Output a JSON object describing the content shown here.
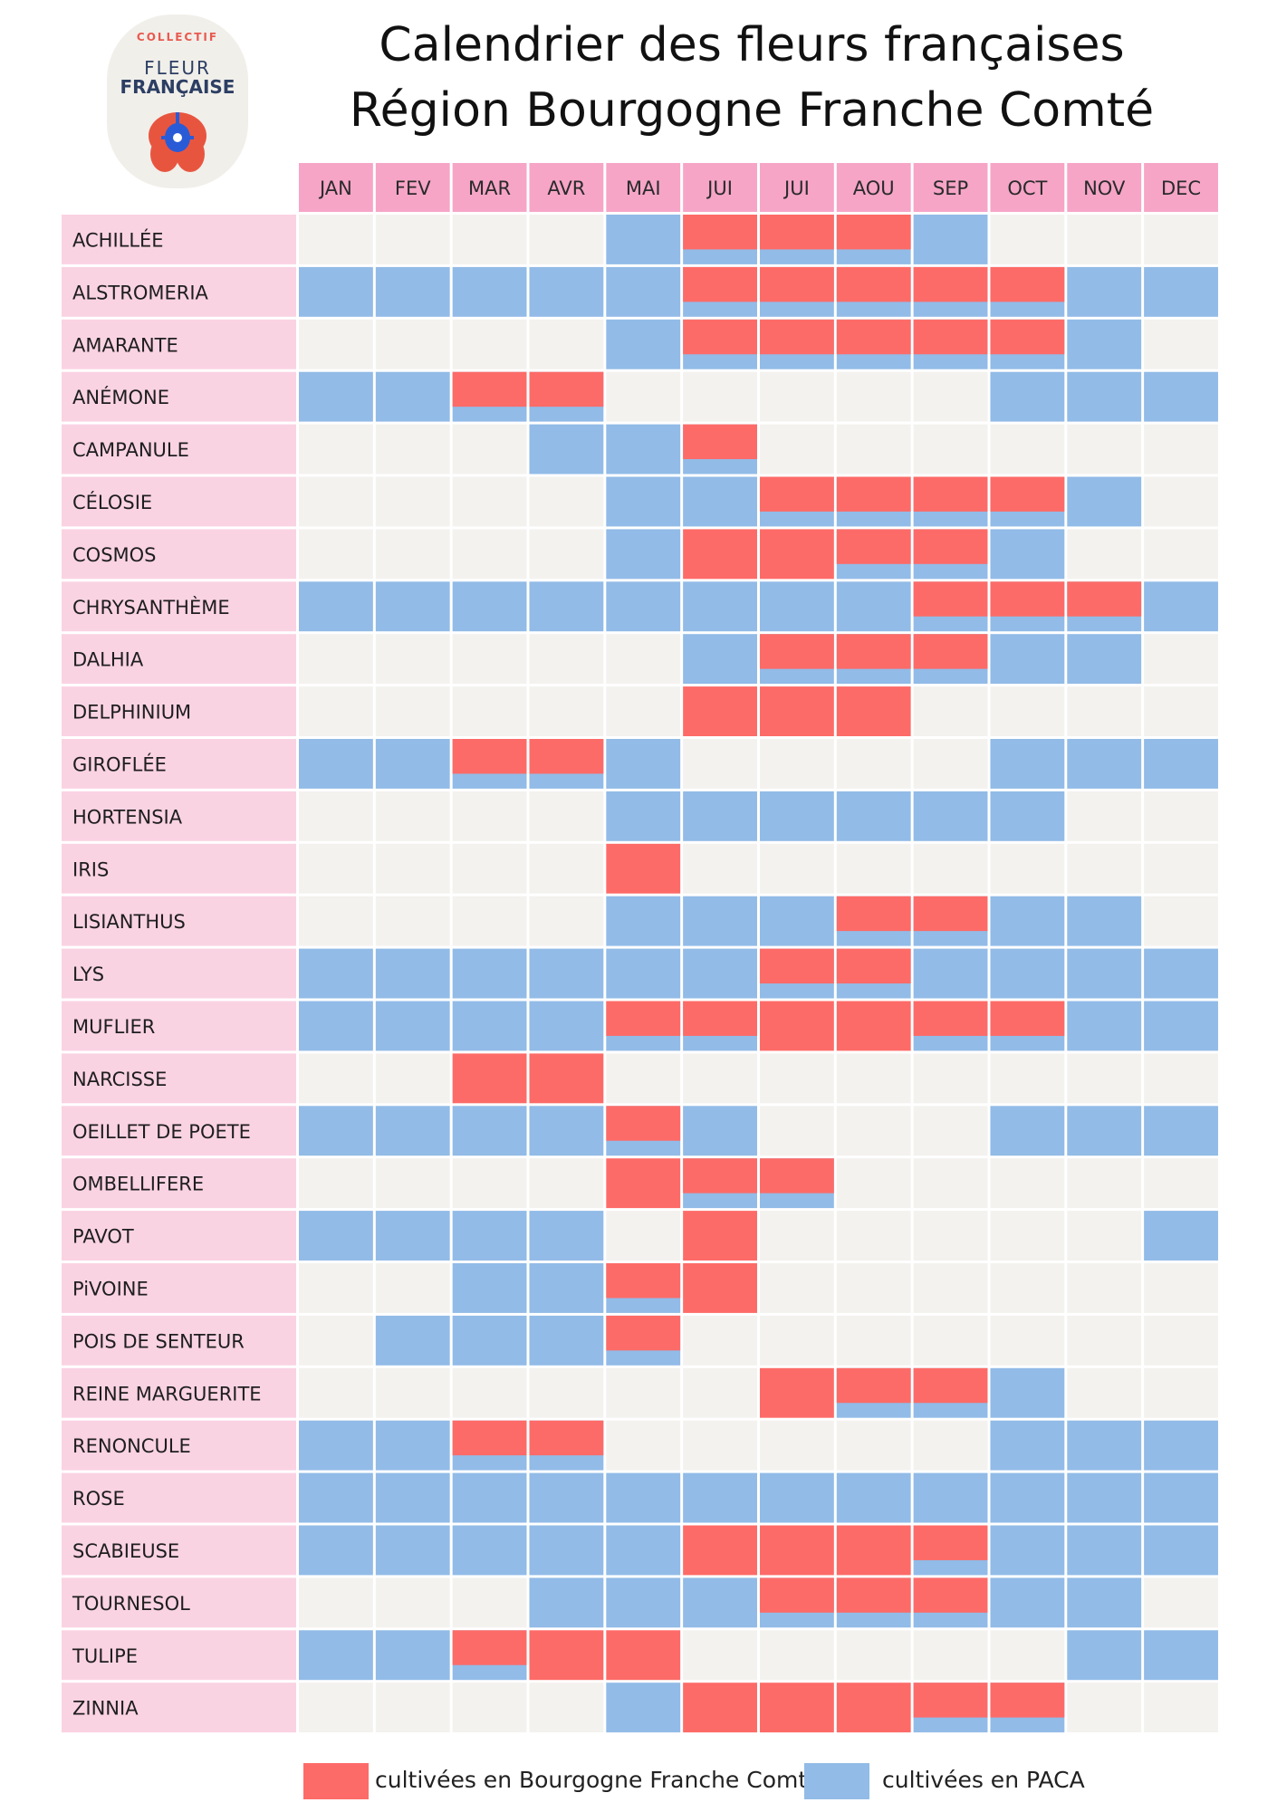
{
  "title_line1": "Calendrier des fleurs françaises",
  "title_line2": "Région Bourgogne Franche Comté",
  "logo": {
    "line1": "COLLECTIF",
    "line2": "FLEUR",
    "line3": "FRANÇAISE"
  },
  "colors": {
    "bfc": "#fd6b68",
    "paca": "#92bbe7",
    "empty": "#f3f2ef",
    "header": "#f6a5c7",
    "label_bg": "#fad3e3"
  },
  "legend": {
    "bfc": "cultivées en Bourgogne Franche Comté",
    "paca": "cultivées en PACA"
  },
  "chart_data": {
    "type": "table",
    "title": "Calendrier des fleurs françaises — Région Bourgogne Franche Comté",
    "months": [
      "JAN",
      "FEV",
      "MAR",
      "AVR",
      "MAI",
      "JUI",
      "JUI",
      "AOU",
      "SEP",
      "OCT",
      "NOV",
      "DEC"
    ],
    "flowers": [
      {
        "name": "ACHILLÉE",
        "cells": [
          "",
          "",
          "",
          "",
          "P",
          "BP",
          "BP",
          "BP",
          "P",
          "",
          "",
          ""
        ]
      },
      {
        "name": "ALSTROMERIA",
        "cells": [
          "P",
          "P",
          "P",
          "P",
          "P",
          "BP",
          "BP",
          "BP",
          "BP",
          "BP",
          "P",
          "P"
        ]
      },
      {
        "name": "AMARANTE",
        "cells": [
          "",
          "",
          "",
          "",
          "P",
          "BP",
          "BP",
          "BP",
          "BP",
          "BP",
          "P",
          ""
        ]
      },
      {
        "name": "ANÉMONE",
        "cells": [
          "P",
          "P",
          "BP",
          "BP",
          "",
          "",
          "",
          "",
          "",
          "P",
          "P",
          "P"
        ]
      },
      {
        "name": "CAMPANULE",
        "cells": [
          "",
          "",
          "",
          "P",
          "P",
          "BP",
          "",
          "",
          "",
          "",
          "",
          ""
        ]
      },
      {
        "name": "CÉLOSIE",
        "cells": [
          "",
          "",
          "",
          "",
          "P",
          "P",
          "BP",
          "BP",
          "BP",
          "BP",
          "P",
          ""
        ]
      },
      {
        "name": "COSMOS",
        "cells": [
          "",
          "",
          "",
          "",
          "P",
          "B",
          "B",
          "BP",
          "BP",
          "P",
          "",
          ""
        ]
      },
      {
        "name": "CHRYSANTHÈME",
        "cells": [
          "P",
          "P",
          "P",
          "P",
          "P",
          "P",
          "P",
          "P",
          "BP",
          "BP",
          "BP",
          "P"
        ]
      },
      {
        "name": "DALHIA",
        "cells": [
          "",
          "",
          "",
          "",
          "",
          "P",
          "BP",
          "BP",
          "BP",
          "P",
          "P",
          ""
        ]
      },
      {
        "name": "DELPHINIUM",
        "cells": [
          "",
          "",
          "",
          "",
          "",
          "B",
          "B",
          "B",
          "",
          "",
          "",
          ""
        ]
      },
      {
        "name": "GIROFLÉE",
        "cells": [
          "P",
          "P",
          "BP",
          "BP",
          "P",
          "",
          "",
          "",
          "",
          "P",
          "P",
          "P"
        ]
      },
      {
        "name": "HORTENSIA",
        "cells": [
          "",
          "",
          "",
          "",
          "P",
          "P",
          "P",
          "P",
          "P",
          "P",
          "",
          ""
        ]
      },
      {
        "name": "IRIS",
        "cells": [
          "",
          "",
          "",
          "",
          "B",
          "",
          "",
          "",
          "",
          "",
          "",
          ""
        ]
      },
      {
        "name": "LISIANTHUS",
        "cells": [
          "",
          "",
          "",
          "",
          "P",
          "P",
          "P",
          "BP",
          "BP",
          "P",
          "P",
          ""
        ]
      },
      {
        "name": "LYS",
        "cells": [
          "P",
          "P",
          "P",
          "P",
          "P",
          "P",
          "BP",
          "BP",
          "P",
          "P",
          "P",
          "P"
        ]
      },
      {
        "name": "MUFLIER",
        "cells": [
          "P",
          "P",
          "P",
          "P",
          "BP",
          "BP",
          "B",
          "B",
          "BP",
          "BP",
          "P",
          "P"
        ]
      },
      {
        "name": "NARCISSE",
        "cells": [
          "",
          "",
          "B",
          "B",
          "",
          "",
          "",
          "",
          "",
          "",
          "",
          ""
        ]
      },
      {
        "name": "OEILLET DE POETE",
        "cells": [
          "P",
          "P",
          "P",
          "P",
          "BP",
          "P",
          "",
          "",
          "",
          "P",
          "P",
          "P"
        ]
      },
      {
        "name": "OMBELLIFERE",
        "cells": [
          "",
          "",
          "",
          "",
          "B",
          "BP",
          "BP",
          "",
          "",
          "",
          "",
          ""
        ]
      },
      {
        "name": "PAVOT",
        "cells": [
          "P",
          "P",
          "P",
          "P",
          "",
          "B",
          "",
          "",
          "",
          "",
          "",
          "P"
        ]
      },
      {
        "name": "PiVOINE",
        "cells": [
          "",
          "",
          "P",
          "P",
          "BP",
          "B",
          "",
          "",
          "",
          "",
          "",
          ""
        ]
      },
      {
        "name": "POIS DE SENTEUR",
        "cells": [
          "",
          "P",
          "P",
          "P",
          "BP",
          "",
          "",
          "",
          "",
          "",
          "",
          ""
        ]
      },
      {
        "name": "REINE MARGUERITE",
        "cells": [
          "",
          "",
          "",
          "",
          "",
          "",
          "B",
          "BP",
          "BP",
          "P",
          "",
          ""
        ]
      },
      {
        "name": "RENONCULE",
        "cells": [
          "P",
          "P",
          "BP",
          "BP",
          "",
          "",
          "",
          "",
          "",
          "P",
          "P",
          "P"
        ]
      },
      {
        "name": "ROSE",
        "cells": [
          "P",
          "P",
          "P",
          "P",
          "P",
          "P",
          "P",
          "P",
          "P",
          "P",
          "P",
          "P"
        ]
      },
      {
        "name": "SCABIEUSE",
        "cells": [
          "P",
          "P",
          "P",
          "P",
          "P",
          "B",
          "B",
          "B",
          "BP",
          "P",
          "P",
          "P"
        ]
      },
      {
        "name": "TOURNESOL",
        "cells": [
          "",
          "",
          "",
          "P",
          "P",
          "P",
          "BP",
          "BP",
          "BP",
          "P",
          "P",
          ""
        ]
      },
      {
        "name": "TULIPE",
        "cells": [
          "P",
          "P",
          "BP",
          "B",
          "B",
          "",
          "",
          "",
          "",
          "",
          "P",
          "P"
        ]
      },
      {
        "name": "ZINNIA",
        "cells": [
          "",
          "",
          "",
          "",
          "P",
          "B",
          "B",
          "B",
          "BP",
          "BP",
          "",
          ""
        ]
      }
    ],
    "cell_codes": {
      "B": "cultivées en Bourgogne Franche Comté",
      "P": "cultivées en PACA",
      "BP": "both",
      "": "none"
    }
  }
}
